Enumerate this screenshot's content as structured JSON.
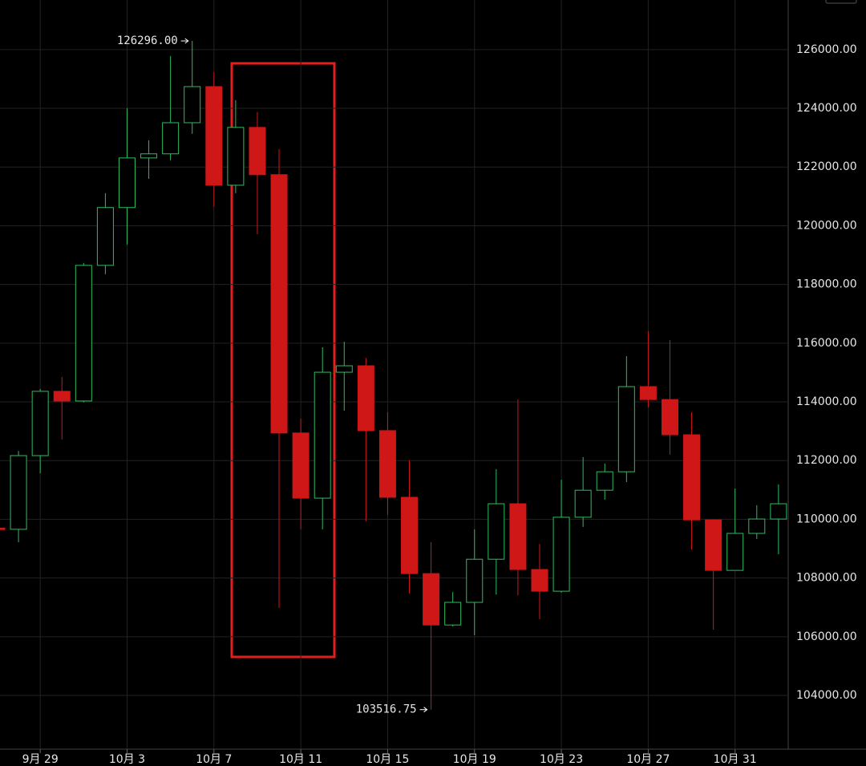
{
  "chart_data": {
    "type": "candlestick",
    "categories": [
      null,
      null,
      "9月 29",
      null,
      null,
      null,
      "10月 3",
      null,
      null,
      null,
      "10月 7",
      null,
      null,
      null,
      "10月 11",
      null,
      null,
      null,
      "10月 15",
      null,
      null,
      null,
      "10月 19",
      null,
      null,
      null,
      "10月 23",
      null,
      null,
      null,
      "10月 27",
      null,
      null,
      null,
      "10月 31",
      null,
      null
    ],
    "open": [
      109700,
      109660,
      112170,
      114360,
      114030,
      118650,
      120620,
      122310,
      122450,
      123510,
      124740,
      121380,
      123350,
      121740,
      112940,
      110720,
      115010,
      115230,
      113020,
      110750,
      108150,
      106400,
      107170,
      108640,
      110530,
      108290,
      107550,
      110070,
      110990,
      111620,
      114520,
      114080,
      112880,
      109980,
      108260,
      109520,
      110010
    ],
    "high": [
      109700,
      112330,
      114440,
      114850,
      118730,
      121110,
      124000,
      122910,
      125780,
      126296,
      125230,
      124280,
      123870,
      122610,
      113430,
      115860,
      116050,
      115500,
      113650,
      112010,
      109220,
      107520,
      109660,
      111710,
      114080,
      109160,
      111350,
      112120,
      111900,
      115560,
      116410,
      116110,
      113650,
      110000,
      111050,
      110480,
      111190
    ],
    "low": [
      109650,
      109220,
      111570,
      112720,
      113980,
      118350,
      119360,
      121600,
      122230,
      123130,
      120640,
      121110,
      119710,
      106980,
      109660,
      109660,
      113700,
      109930,
      110150,
      107470,
      103516.75,
      106350,
      106050,
      107440,
      107410,
      106600,
      107500,
      109740,
      110670,
      111270,
      113810,
      112200,
      108970,
      106240,
      108260,
      109330,
      108810
    ],
    "close": [
      109650,
      112170,
      114360,
      114030,
      118650,
      120620,
      122310,
      122450,
      123510,
      124740,
      121380,
      123350,
      121740,
      112940,
      110720,
      115010,
      115230,
      113020,
      110750,
      108150,
      106400,
      107170,
      108640,
      110530,
      108290,
      107550,
      110070,
      110990,
      111620,
      114520,
      114080,
      112880,
      109980,
      108260,
      109520,
      110010,
      110530
    ],
    "up_color": "#2ebd5f",
    "down_color": "#cf1717",
    "ylim": [
      102170,
      127690
    ],
    "yticks": [
      {
        "value": 104000,
        "label": "104000.00"
      },
      {
        "value": 106000,
        "label": "106000.00"
      },
      {
        "value": 108000,
        "label": "108000.00"
      },
      {
        "value": 110000,
        "label": "110000.00"
      },
      {
        "value": 112000,
        "label": "112000.00"
      },
      {
        "value": 114000,
        "label": "114000.00"
      },
      {
        "value": 116000,
        "label": "116000.00"
      },
      {
        "value": 118000,
        "label": "118000.00"
      },
      {
        "value": 120000,
        "label": "120000.00"
      },
      {
        "value": 122000,
        "label": "122000.00"
      },
      {
        "value": 124000,
        "label": "124000.00"
      },
      {
        "value": 126000,
        "label": "126000.00"
      }
    ],
    "grid": true,
    "annotations": [
      {
        "text": "126296.00",
        "index": 9
      },
      {
        "text": "103516.75",
        "index": 20
      }
    ]
  }
}
